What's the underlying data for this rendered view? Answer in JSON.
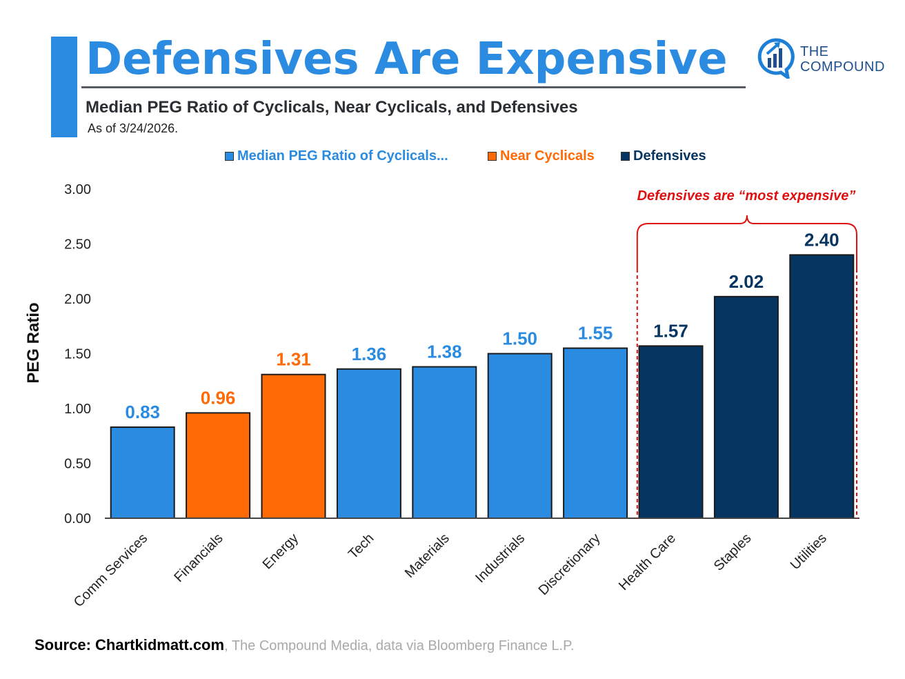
{
  "header": {
    "title": "Defensives Are Expensive",
    "subtitle": "Median PEG Ratio of Cyclicals, Near Cyclicals, and Defensives",
    "as_of": "As of 3/24/2026."
  },
  "brand": {
    "line1": "THE",
    "line2": "COMPOUND",
    "icon": "compound-logo-icon",
    "color": "#1d4f91"
  },
  "colors": {
    "accent": "#2a8be0",
    "cyclicals": "#2a8be0",
    "near_cyclicals": "#ff6a07",
    "defensives": "#063561",
    "annotation": "#e01010"
  },
  "legend": [
    {
      "label": "Median PEG Ratio of Cyclicals...",
      "color": "#2a8be0"
    },
    {
      "label": "Near Cyclicals",
      "color": "#ff6a07"
    },
    {
      "label": "Defensives",
      "color": "#063561"
    }
  ],
  "annotation": {
    "text": "Defensives are “most expensive”",
    "color": "#e01010"
  },
  "source": {
    "bold": "Source: Chartkidmatt.com",
    "rest": ", The Compound Media, data via Bloomberg Finance L.P."
  },
  "chart_data": {
    "type": "bar",
    "title": "Median PEG Ratio of Cyclicals, Near Cyclicals, and Defensives",
    "ylabel": "PEG Ratio",
    "xlabel": "",
    "ylim": [
      0,
      3
    ],
    "yticks": [
      "0.00",
      "0.50",
      "1.00",
      "1.50",
      "2.00",
      "2.50",
      "3.00"
    ],
    "grid": false,
    "legend_position": "top",
    "categories": [
      "Comm Services",
      "Financials",
      "Energy",
      "Tech",
      "Materials",
      "Industrials",
      "Discretionary",
      "Health Care",
      "Staples",
      "Utilities"
    ],
    "values": [
      0.83,
      0.96,
      1.31,
      1.36,
      1.38,
      1.5,
      1.55,
      1.57,
      2.02,
      2.4
    ],
    "value_labels": [
      "0.83",
      "0.96",
      "1.31",
      "1.36",
      "1.38",
      "1.50",
      "1.55",
      "1.57",
      "2.02",
      "2.40"
    ],
    "groups": [
      "cyclicals",
      "near_cyclicals",
      "near_cyclicals",
      "cyclicals",
      "cyclicals",
      "cyclicals",
      "cyclicals",
      "defensives",
      "defensives",
      "defensives"
    ],
    "highlight": {
      "from_category": "Health Care",
      "to_category": "Utilities"
    }
  }
}
